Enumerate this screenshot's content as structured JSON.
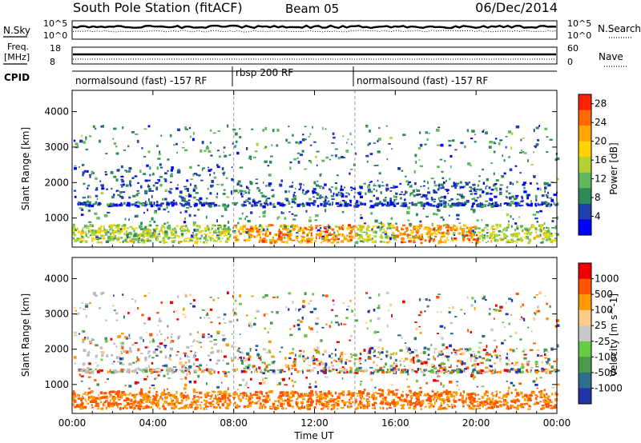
{
  "header": {
    "title": "South Pole Station (fitACF)",
    "beam": "Beam 05",
    "date": "06/Dec/2014"
  },
  "strip_labels": {
    "nsky": "N.Sky",
    "nsky_ticks": [
      "10^5",
      "10^0"
    ],
    "freq_line1": "Freq.",
    "freq_line2": "[MHz]",
    "freq_ticks": [
      "18",
      "8"
    ],
    "cpid": "CPID",
    "nsearch": "N.Search",
    "nsearch_ticks": [
      "10^5",
      "10^0"
    ],
    "nave": "Nave",
    "nave_ticks": [
      "60",
      "0"
    ]
  },
  "cpid_segments": [
    {
      "start": "00:00",
      "end": "08:00",
      "label": "normalsound (fast) -157 RF"
    },
    {
      "start": "08:00",
      "end": "14:00",
      "label": "rbsp 200 RF"
    },
    {
      "start": "14:00",
      "end": "24:00",
      "label": "normalsound (fast) -157 RF"
    }
  ],
  "chart_data": [
    {
      "type": "heatmap",
      "panel": "power",
      "x_ticks": [
        "00:00",
        "04:00",
        "08:00",
        "12:00",
        "16:00",
        "20:00",
        "00:00"
      ],
      "ylabel": "Slant Range [km]",
      "y_ticks": [
        1000,
        2000,
        3000,
        4000
      ],
      "ylim": [
        180,
        4600
      ],
      "xlim_hours": [
        0,
        24
      ],
      "colorbar": {
        "label": "Power [dB]",
        "ticks": [
          4,
          8,
          12,
          16,
          20,
          24,
          28
        ],
        "range": [
          0,
          30
        ],
        "colors": [
          "#0000ff",
          "#1e3fae",
          "#2e8b57",
          "#5fb85f",
          "#b4d233",
          "#ffd400",
          "#ffa500",
          "#ff6a00",
          "#ff2200"
        ]
      }
    },
    {
      "type": "heatmap",
      "panel": "velocity",
      "x_ticks": [
        "00:00",
        "04:00",
        "08:00",
        "12:00",
        "16:00",
        "20:00",
        "00:00"
      ],
      "xlabel": "Time UT",
      "ylabel": "Slant Range [km]",
      "y_ticks": [
        1000,
        2000,
        3000,
        4000
      ],
      "ylim": [
        180,
        4600
      ],
      "xlim_hours": [
        0,
        24
      ],
      "colorbar": {
        "label": "Velocity [m s^-1]",
        "ticks": [
          "1000",
          "500",
          "100",
          "25",
          "-25",
          "-100",
          "-500",
          "-1000"
        ],
        "colors": [
          "#2233aa",
          "#2e6e8e",
          "#4a9a4a",
          "#66cc44",
          "#c8c8c8",
          "#ffcc88",
          "#ff9900",
          "#ff5500",
          "#ee0000"
        ]
      }
    }
  ],
  "colors": {
    "marker_line": "#999999",
    "ground_scatter": "#bbbbbb"
  }
}
